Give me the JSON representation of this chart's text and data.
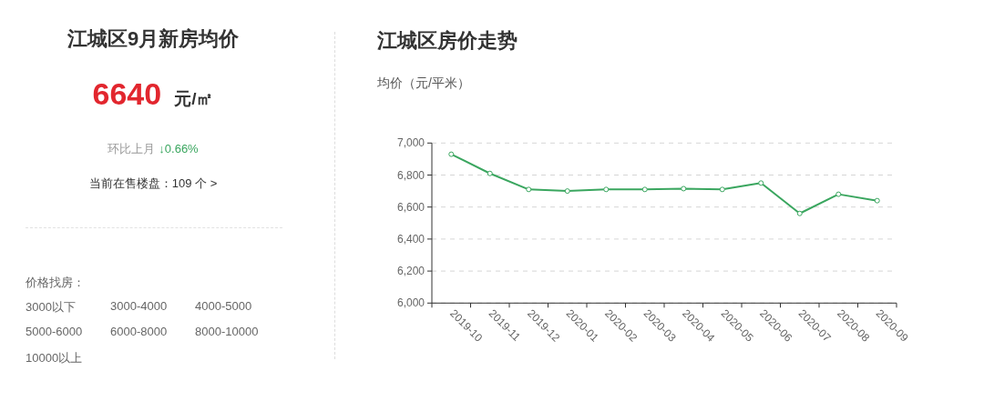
{
  "chart_data": [
    {
      "type": "other",
      "title": "江城区9月新房均价",
      "annotations": [
        "6640",
        "元/㎡",
        "环比上月",
        "↓0.66%",
        "当前在售楼盘：109 个 >",
        "价格找房：",
        "3000以下",
        "3000-4000",
        "4000-5000",
        "5000-6000",
        "6000-8000",
        "8000-10000",
        "10000以上"
      ]
    },
    {
      "type": "line",
      "title": "江城区房价走势",
      "ylabel": "均价（元/平米）",
      "categories": [
        "2019-10",
        "2019-11",
        "2019-12",
        "2020-01",
        "2020-02",
        "2020-03",
        "2020-04",
        "2020-05",
        "2020-06",
        "2020-07",
        "2020-08",
        "2020-09"
      ],
      "values": [
        6930,
        6810,
        6710,
        6700,
        6710,
        6710,
        6715,
        6710,
        6750,
        6560,
        6680,
        6640
      ],
      "color": "#3aa65f",
      "marker": "circle",
      "ylim": [
        6000,
        7000
      ],
      "yticks": [
        {
          "value": 6000,
          "label": "6,000"
        },
        {
          "value": 6200,
          "label": "6,200"
        },
        {
          "value": 6400,
          "label": "6,400"
        },
        {
          "value": 6600,
          "label": "6,600"
        },
        {
          "value": 6800,
          "label": "6,800"
        },
        {
          "value": 7000,
          "label": "7,000"
        }
      ],
      "grid": "y"
    }
  ]
}
